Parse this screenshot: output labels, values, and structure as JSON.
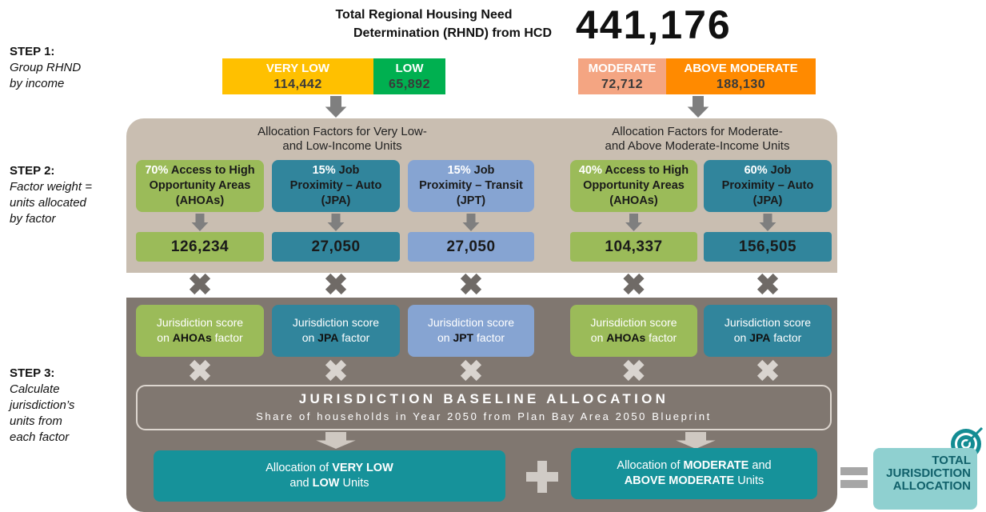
{
  "header": {
    "title": [
      "Total Regional Housing Need",
      "Determination  (RHND) from HCD"
    ],
    "total": "441,176"
  },
  "steps": [
    {
      "label": "STEP 1:",
      "description": [
        "Group RHND",
        "by income"
      ]
    },
    {
      "label": "STEP 2:",
      "description": [
        "Factor weight =",
        "units allocated",
        "by factor"
      ]
    },
    {
      "label": "STEP 3:",
      "description": [
        "Calculate",
        "jurisdiction’s",
        "units from",
        "each factor"
      ]
    }
  ],
  "income_groups": [
    {
      "name": "VERY LOW",
      "units": "114,442"
    },
    {
      "name": "LOW",
      "units": "65,892"
    },
    {
      "name": "MODERATE",
      "units": "72,712"
    },
    {
      "name": "ABOVE MODERATE",
      "units": "188,130"
    }
  ],
  "factor_groups": [
    {
      "title": [
        "Allocation Factors for Very Low-",
        "and Low-Income Units"
      ],
      "factors": [
        {
          "weight": "70%",
          "name": [
            "Access to High",
            "Opportunity Areas",
            "(AHOAs)"
          ],
          "units": "126,234",
          "score": {
            "line1": "Jurisdiction score",
            "prefix": "on",
            "factor": "AHOAs",
            "suffix": "factor"
          }
        },
        {
          "weight": "15%",
          "name": [
            "Job",
            "Proximity – Auto",
            "(JPA)"
          ],
          "units": "27,050",
          "score": {
            "line1": "Jurisdiction score",
            "prefix": "on",
            "factor": "JPA",
            "suffix": "factor"
          }
        },
        {
          "weight": "15%",
          "name": [
            "Job",
            "Proximity – Transit",
            "(JPT)"
          ],
          "units": "27,050",
          "score": {
            "line1": "Jurisdiction score",
            "prefix": "on",
            "factor": "JPT",
            "suffix": "factor"
          }
        }
      ]
    },
    {
      "title": [
        "Allocation Factors for Moderate-",
        "and Above Moderate-Income Units"
      ],
      "factors": [
        {
          "weight": "40%",
          "name": [
            "Access to High",
            "Opportunity Areas",
            "(AHOAs)"
          ],
          "units": "104,337",
          "score": {
            "line1": "Jurisdiction score",
            "prefix": "on",
            "factor": "AHOAs",
            "suffix": "factor"
          }
        },
        {
          "weight": "60%",
          "name": [
            "Job",
            "Proximity – Auto",
            "(JPA)"
          ],
          "units": "156,505",
          "score": {
            "line1": "Jurisdiction score",
            "prefix": "on",
            "factor": "JPA",
            "suffix": "factor"
          }
        }
      ]
    }
  ],
  "baseline": {
    "title": "JURISDICTION BASELINE ALLOCATION",
    "subtitle": "Share of households in Year 2050 from Plan Bay Area 2050 Blueprint"
  },
  "allocations": [
    {
      "line1": [
        "Allocation of",
        "VERY LOW"
      ],
      "line2": [
        "and",
        "LOW",
        "Units"
      ]
    },
    {
      "line1": [
        "Allocation of",
        "MODERATE",
        "and"
      ],
      "line2": [
        "ABOVE MODERATE",
        "Units"
      ]
    }
  ],
  "total_allocation": [
    "TOTAL",
    "JURISDICTION",
    "ALLOCATION"
  ]
}
